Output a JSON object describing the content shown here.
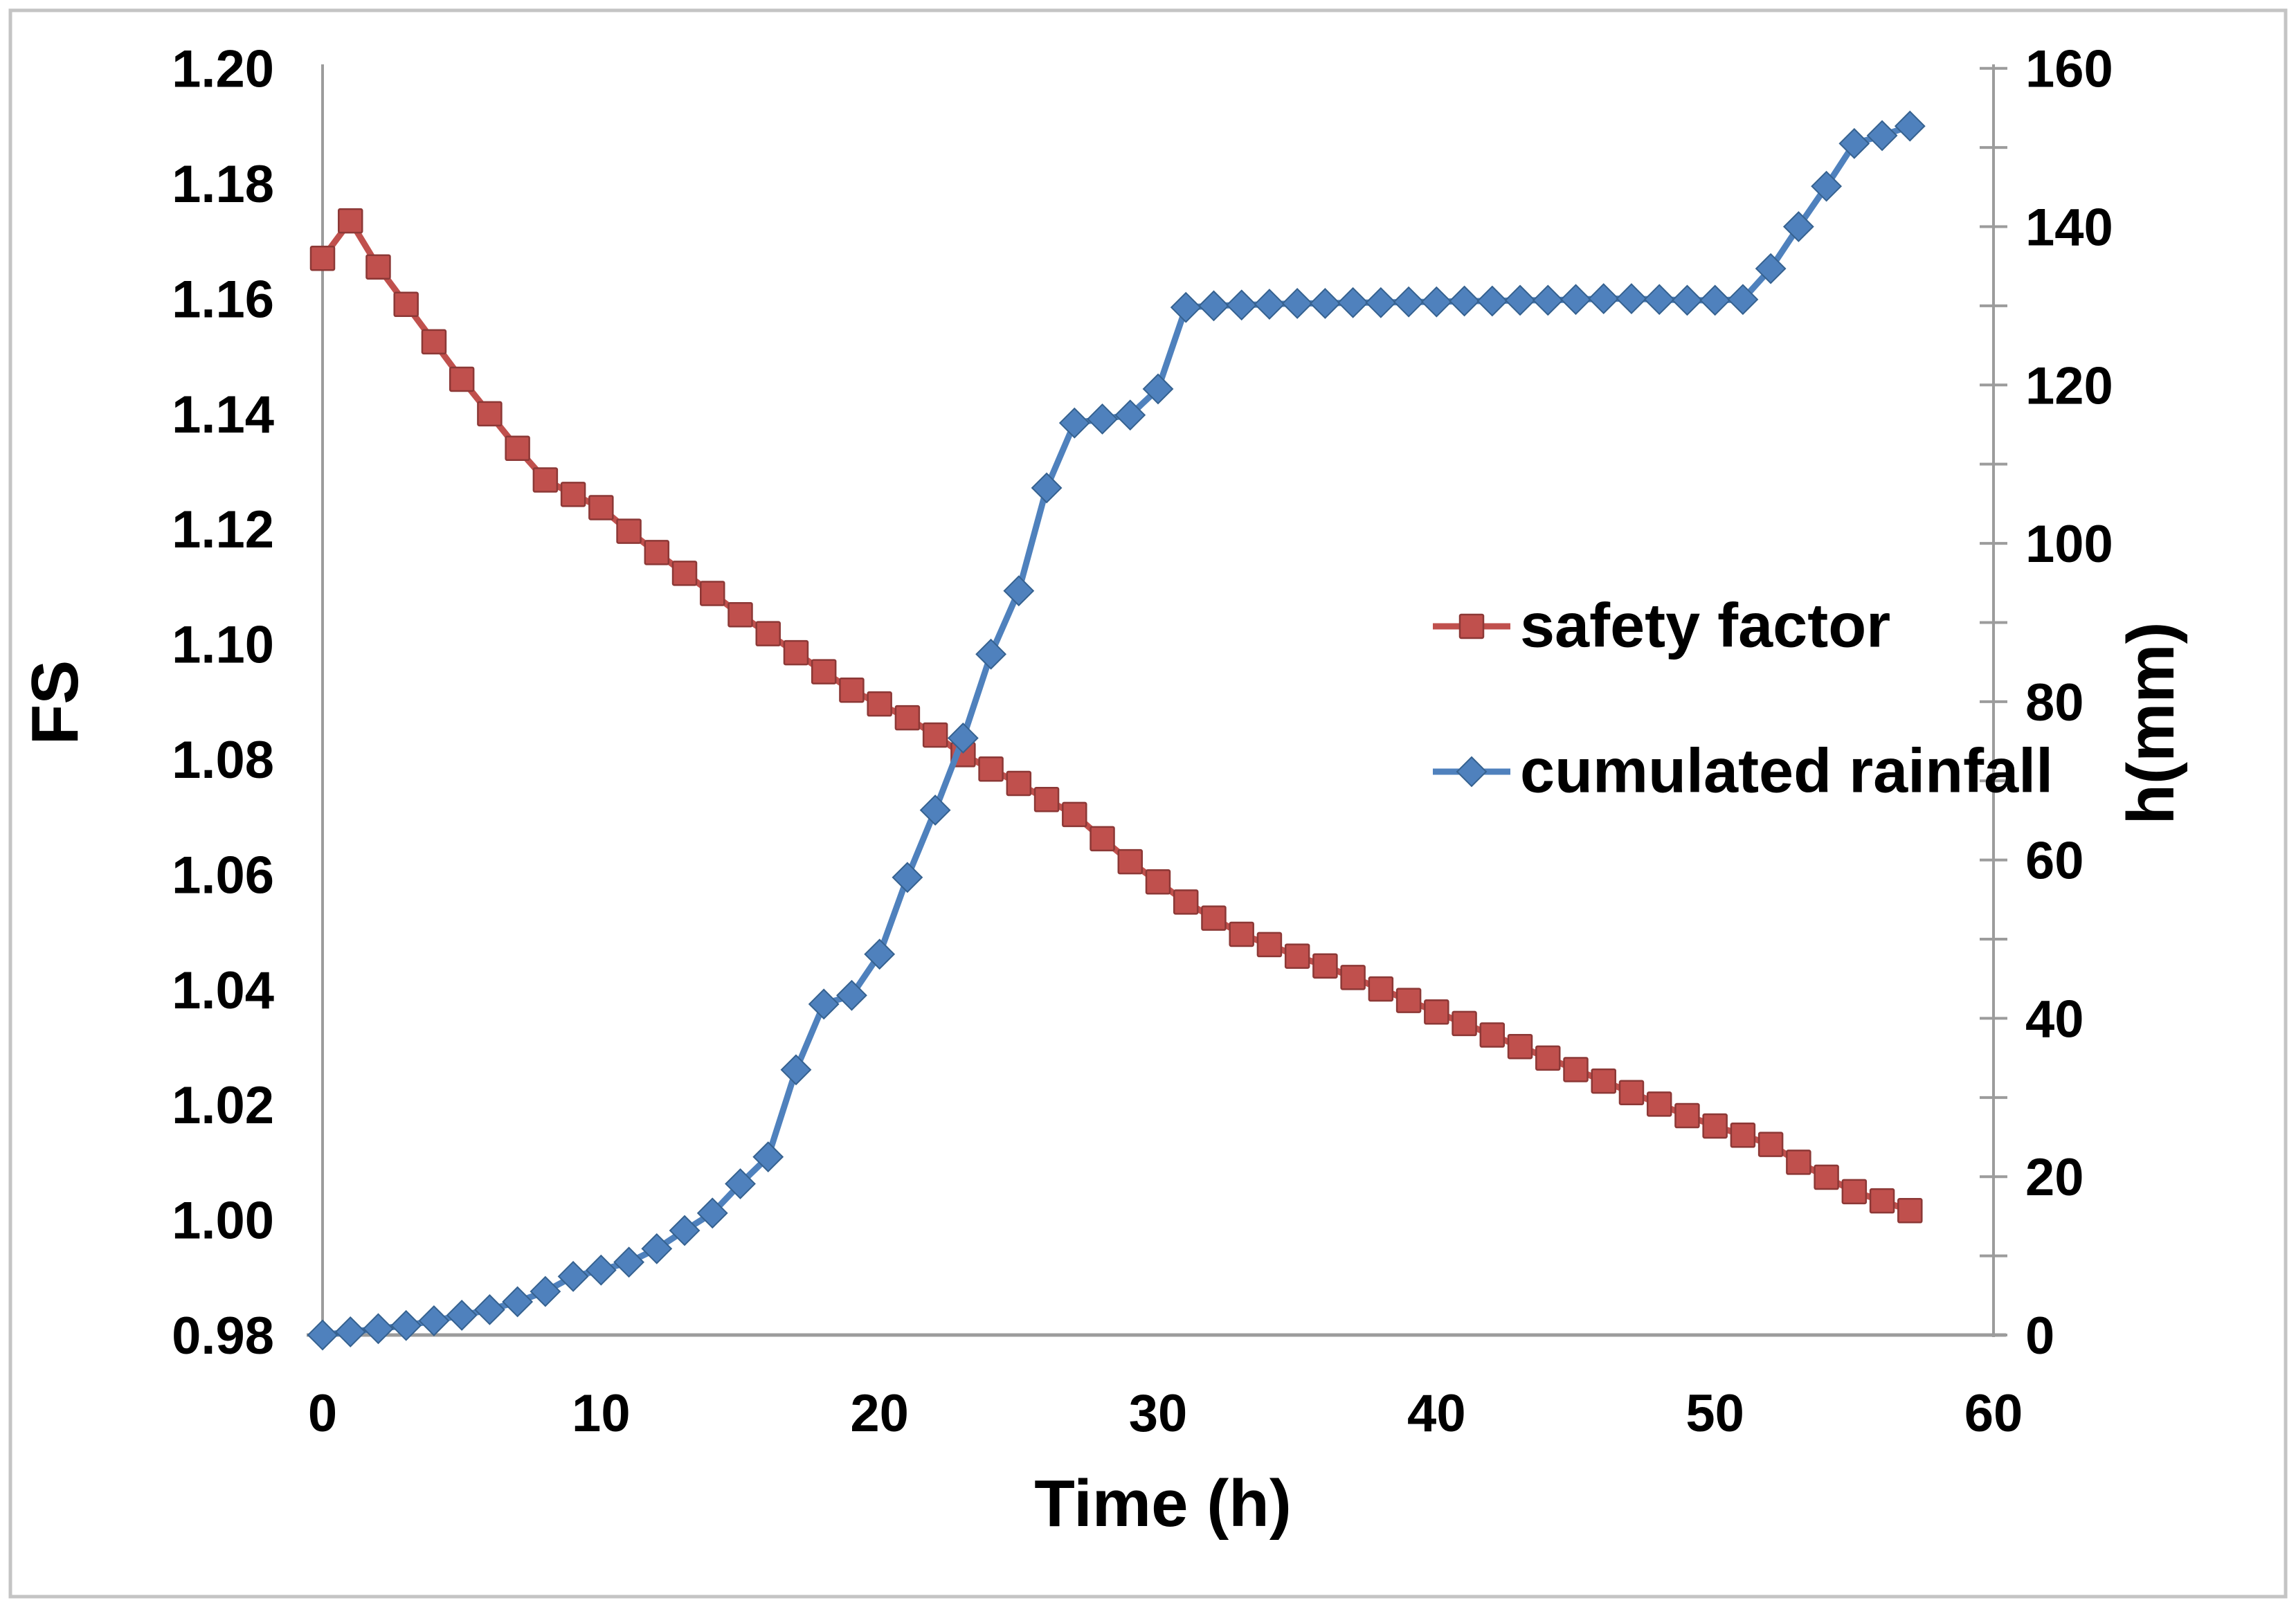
{
  "chart_data": {
    "type": "line",
    "title": "",
    "x_axis": {
      "label": "Time (h)",
      "min": 0,
      "max": 60,
      "tick_step": 10,
      "tick_labels": [
        "0",
        "10",
        "20",
        "30",
        "40",
        "50",
        "60"
      ]
    },
    "y_axis_left": {
      "label": "FS",
      "min": 0.98,
      "max": 1.2,
      "tick_step": 0.02,
      "tick_labels": [
        "1.20",
        "1.18",
        "1.16",
        "1.14",
        "1.12",
        "1.10",
        "1.08",
        "1.06",
        "1.04",
        "1.02",
        "1.00",
        "0.98"
      ]
    },
    "y_axis_right": {
      "label": "h(mm)",
      "min": 0,
      "max": 160,
      "label_step": 20,
      "tick_step": 10,
      "tick_labels": [
        "160",
        "140",
        "120",
        "100",
        "80",
        "60",
        "40",
        "20",
        "0"
      ]
    },
    "grid": "off",
    "legend_position": "middle-right",
    "x_start": 0,
    "x_interval": 1,
    "series": [
      {
        "name": "safety factor",
        "axis": "left",
        "marker": "square",
        "color": "#C0504D",
        "marker_edge_color": "#8C3836",
        "values": [
          1.167,
          1.1735,
          1.1655,
          1.159,
          1.1525,
          1.146,
          1.14,
          1.134,
          1.1285,
          1.126,
          1.1237,
          1.1196,
          1.1159,
          1.1123,
          1.1088,
          1.1051,
          1.1018,
          1.0985,
          1.0952,
          1.092,
          1.0896,
          1.0872,
          1.0842,
          1.0808,
          1.0783,
          1.0758,
          1.073,
          1.0704,
          1.0662,
          1.0622,
          1.0587,
          1.0552,
          1.0524,
          1.0496,
          1.0478,
          1.0458,
          1.0441,
          1.0421,
          1.0401,
          1.0381,
          1.0361,
          1.0341,
          1.0321,
          1.0301,
          1.0281,
          1.0261,
          1.0241,
          1.0221,
          1.0201,
          1.0181,
          1.0163,
          1.0147,
          1.0131,
          1.01,
          1.0074,
          1.0049,
          1.0033,
          1.0016
        ]
      },
      {
        "name": "cumulated rainfall",
        "axis": "right",
        "marker": "diamond",
        "color": "#4F81BD",
        "marker_edge_color": "#35618F",
        "values": [
          0,
          0.4,
          0.8,
          1.2,
          1.8,
          2.5,
          3.2,
          4.2,
          5.5,
          7.4,
          8.2,
          9.2,
          10.9,
          13.2,
          15.4,
          19.1,
          22.5,
          33.5,
          41.8,
          42.9,
          48.1,
          57.8,
          66.3,
          75.4,
          86,
          94,
          107,
          115.2,
          115.7,
          116.2,
          119.5,
          129.8,
          130.0,
          130.1,
          130.2,
          130.3,
          130.3,
          130.4,
          130.4,
          130.5,
          130.5,
          130.6,
          130.6,
          130.7,
          130.7,
          130.8,
          130.9,
          130.9,
          130.8,
          130.7,
          130.7,
          130.8,
          134.7,
          140.0,
          145.1,
          150.5,
          151.5,
          152.7
        ]
      }
    ],
    "colors": {
      "axis_line": "#9C9C9C",
      "frame_border": "#C4C4C4",
      "text": "#000000",
      "background": "#FFFFFF"
    }
  }
}
